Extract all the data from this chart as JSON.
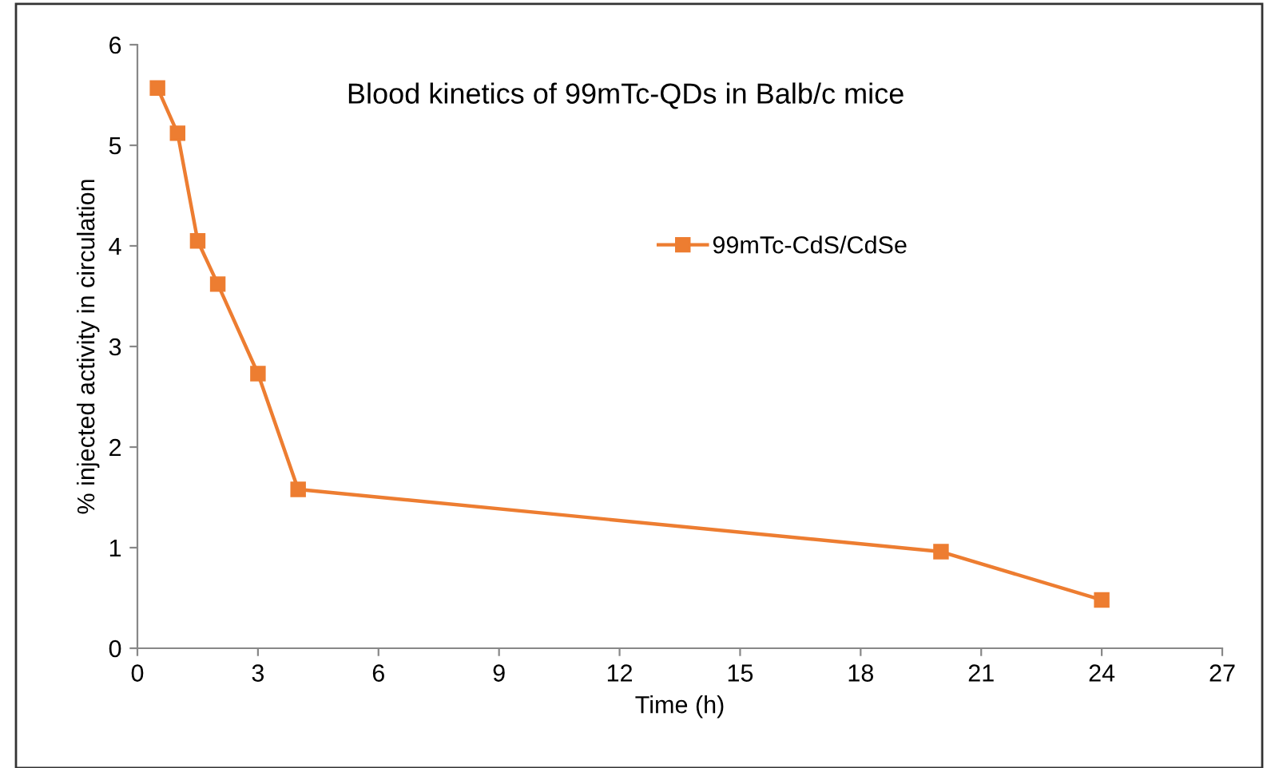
{
  "chart_data": {
    "type": "line",
    "title": "Blood kinetics of 99mTc-QDs in Balb/c mice",
    "xlabel": "Time (h)",
    "ylabel": "% injected activity in circulation",
    "x": [
      0.5,
      1,
      1.5,
      2,
      3,
      4,
      20,
      24
    ],
    "series": [
      {
        "name": "99mTc-CdS/CdSe",
        "color": "#ed7d31",
        "values": [
          5.57,
          5.12,
          4.05,
          3.62,
          2.73,
          1.58,
          0.96,
          0.48
        ]
      }
    ],
    "xlim": [
      0,
      27
    ],
    "xticks": [
      0,
      3,
      6,
      9,
      12,
      15,
      18,
      21,
      24,
      27
    ],
    "ylim": [
      0,
      6
    ],
    "yticks": [
      0,
      1,
      2,
      3,
      4,
      5,
      6
    ],
    "marker": "square",
    "line_style": "solid",
    "legend": "top right",
    "grid": false
  }
}
